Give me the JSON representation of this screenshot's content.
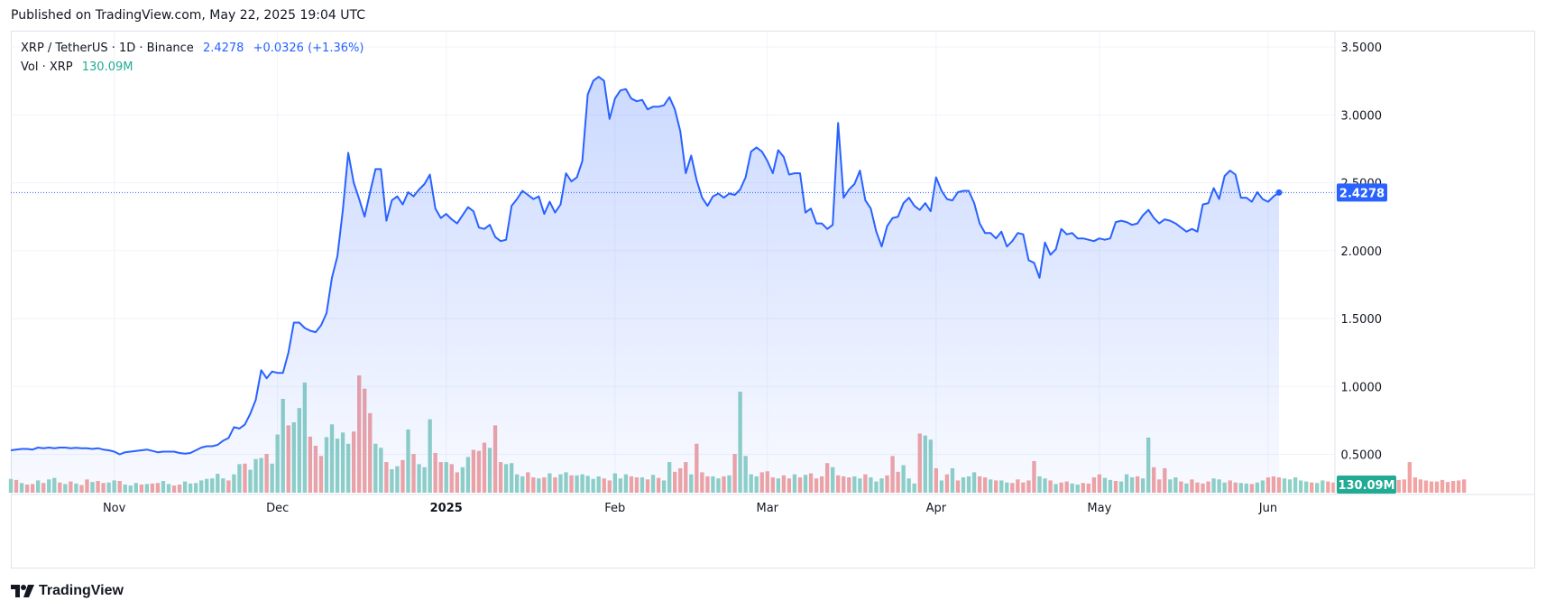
{
  "header": {
    "published": "Published on TradingView.com, May 22, 2025 19:04 UTC"
  },
  "legend": {
    "symbol": "XRP / TetherUS · 1D · Binance",
    "last": "2.4278",
    "change": "+0.0326 (+1.36%)",
    "vol_label": "Vol · XRP",
    "vol_value": "130.09M"
  },
  "price_tag": "2.4278",
  "volume_tag": "130.09M",
  "footer": {
    "brand": "TradingView"
  },
  "colors": {
    "line": "#2962ff",
    "up_volume": "#8fd1c6",
    "down_volume": "#f1a4a4",
    "price_tag": "#2962ff",
    "volume_tag": "#22ab94"
  },
  "chart_data": {
    "type": "area",
    "title": "XRP / TetherUS · 1D · Binance",
    "x_labels": [
      "Nov",
      "Dec",
      "2025",
      "Feb",
      "Mar",
      "Apr",
      "May",
      "Jun"
    ],
    "y_ticks": [
      "3.5000",
      "3.0000",
      "2.5000",
      "2.0000",
      "1.5000",
      "1.0000",
      "0.5000"
    ],
    "ylim": [
      0.27,
      3.5
    ],
    "grid": true,
    "last_value": 2.4278,
    "series": [
      {
        "name": "XRP / TetherUS",
        "date_range": [
          "2024-10-13",
          "2025-05-22"
        ],
        "interval": "1D",
        "values": [
          0.53,
          0.535,
          0.54,
          0.54,
          0.535,
          0.55,
          0.545,
          0.55,
          0.545,
          0.55,
          0.55,
          0.545,
          0.548,
          0.545,
          0.545,
          0.54,
          0.545,
          0.535,
          0.53,
          0.52,
          0.5,
          0.515,
          0.52,
          0.525,
          0.53,
          0.535,
          0.525,
          0.515,
          0.52,
          0.52,
          0.52,
          0.51,
          0.505,
          0.51,
          0.53,
          0.55,
          0.56,
          0.56,
          0.57,
          0.6,
          0.62,
          0.7,
          0.69,
          0.72,
          0.8,
          0.9,
          1.12,
          1.06,
          1.11,
          1.1,
          1.1,
          1.25,
          1.47,
          1.47,
          1.43,
          1.41,
          1.4,
          1.45,
          1.54,
          1.8,
          1.96,
          2.3,
          2.72,
          2.5,
          2.38,
          2.25,
          2.43,
          2.6,
          2.6,
          2.22,
          2.37,
          2.4,
          2.34,
          2.43,
          2.4,
          2.45,
          2.49,
          2.56,
          2.31,
          2.24,
          2.27,
          2.23,
          2.2,
          2.26,
          2.32,
          2.29,
          2.17,
          2.16,
          2.19,
          2.1,
          2.07,
          2.08,
          2.33,
          2.38,
          2.44,
          2.41,
          2.38,
          2.4,
          2.27,
          2.36,
          2.28,
          2.34,
          2.57,
          2.51,
          2.54,
          2.66,
          3.15,
          3.25,
          3.28,
          3.25,
          2.97,
          3.12,
          3.18,
          3.19,
          3.12,
          3.1,
          3.11,
          3.04,
          3.06,
          3.06,
          3.07,
          3.13,
          3.04,
          2.88,
          2.57,
          2.7,
          2.52,
          2.39,
          2.33,
          2.4,
          2.42,
          2.39,
          2.42,
          2.41,
          2.45,
          2.54,
          2.73,
          2.76,
          2.73,
          2.66,
          2.57,
          2.74,
          2.69,
          2.56,
          2.57,
          2.57,
          2.28,
          2.31,
          2.2,
          2.2,
          2.16,
          2.19,
          2.94,
          2.39,
          2.45,
          2.49,
          2.59,
          2.37,
          2.31,
          2.14,
          2.03,
          2.18,
          2.24,
          2.25,
          2.35,
          2.39,
          2.33,
          2.3,
          2.35,
          2.29,
          2.54,
          2.44,
          2.38,
          2.37,
          2.43,
          2.44,
          2.44,
          2.35,
          2.2,
          2.13,
          2.13,
          2.09,
          2.14,
          2.03,
          2.07,
          2.13,
          2.12,
          1.93,
          1.91,
          1.8,
          2.06,
          1.97,
          2.01,
          2.16,
          2.12,
          2.13,
          2.09,
          2.09,
          2.08,
          2.07,
          2.09,
          2.08,
          2.09,
          2.21,
          2.22,
          2.21,
          2.19,
          2.2,
          2.26,
          2.3,
          2.24,
          2.2,
          2.23,
          2.22,
          2.2,
          2.17,
          2.14,
          2.16,
          2.14,
          2.34,
          2.35,
          2.46,
          2.38,
          2.55,
          2.59,
          2.56,
          2.39,
          2.39,
          2.36,
          2.43,
          2.38,
          2.36,
          2.4,
          2.4278
        ]
      },
      {
        "name": "Vol · XRP",
        "unit": "M XRP",
        "values": [
          135,
          125,
          95,
          80,
          85,
          120,
          95,
          130,
          145,
          100,
          85,
          110,
          90,
          75,
          130,
          105,
          115,
          95,
          100,
          120,
          115,
          80,
          70,
          95,
          80,
          85,
          90,
          95,
          115,
          85,
          70,
          80,
          110,
          90,
          95,
          120,
          135,
          140,
          185,
          140,
          120,
          180,
          280,
          285,
          225,
          330,
          340,
          380,
          285,
          570,
          920,
          660,
          690,
          830,
          1080,
          550,
          460,
          360,
          545,
          670,
          530,
          590,
          480,
          600,
          1150,
          1020,
          780,
          480,
          440,
          300,
          230,
          260,
          320,
          620,
          380,
          280,
          250,
          720,
          390,
          300,
          300,
          280,
          200,
          250,
          350,
          420,
          410,
          490,
          440,
          660,
          300,
          280,
          290,
          180,
          160,
          200,
          150,
          140,
          150,
          190,
          150,
          180,
          200,
          170,
          170,
          180,
          165,
          135,
          160,
          140,
          120,
          190,
          140,
          180,
          160,
          150,
          150,
          130,
          175,
          145,
          120,
          300,
          205,
          240,
          300,
          180,
          480,
          200,
          160,
          160,
          140,
          160,
          170,
          380,
          990,
          360,
          180,
          160,
          200,
          210,
          150,
          140,
          170,
          140,
          180,
          150,
          175,
          190,
          140,
          160,
          290,
          250,
          170,
          160,
          150,
          160,
          140,
          180,
          150,
          110,
          140,
          170,
          360,
          205,
          270,
          140,
          90,
          580,
          560,
          520,
          240,
          120,
          180,
          240,
          120,
          150,
          160,
          200,
          160,
          150,
          130,
          120,
          120,
          100,
          95,
          130,
          100,
          120,
          310,
          160,
          140,
          120,
          85,
          100,
          110,
          90,
          80,
          95,
          90,
          150,
          180,
          145,
          125,
          115,
          110,
          180,
          150,
          160,
          140,
          540,
          250,
          130,
          240,
          130,
          150,
          110,
          90,
          130,
          100,
          90,
          110,
          140,
          130,
          100,
          120,
          100,
          95,
          90,
          85,
          100,
          120,
          150,
          160,
          150,
          140,
          130,
          150,
          120,
          110,
          100,
          95,
          120,
          110,
          100,
          80,
          90,
          110,
          90,
          95,
          110,
          140,
          160,
          110,
          130,
          150,
          125,
          130,
          300,
          150,
          130,
          120,
          110,
          110,
          125,
          105,
          115,
          120,
          130.09
        ],
        "up": [
          1,
          0,
          1,
          0,
          0,
          1,
          0,
          1,
          1,
          0,
          1,
          0,
          1,
          0,
          0,
          1,
          0,
          0,
          1,
          1,
          0,
          1,
          1,
          1,
          0,
          1,
          0,
          0,
          1,
          1,
          0,
          0,
          1,
          1,
          1,
          1,
          1,
          1,
          1,
          1,
          0,
          1,
          1,
          0,
          1,
          1,
          1,
          0,
          1,
          1,
          1,
          0,
          1,
          1,
          1,
          0,
          0,
          0,
          1,
          1,
          1,
          1,
          1,
          0,
          0,
          0,
          0,
          1,
          1,
          0,
          1,
          1,
          0,
          1,
          0,
          1,
          1,
          1,
          0,
          0,
          1,
          0,
          0,
          1,
          1,
          0,
          0,
          0,
          1,
          0,
          0,
          1,
          1,
          1,
          1,
          0,
          0,
          1,
          0,
          1,
          0,
          1,
          1,
          0,
          1,
          1,
          1,
          1,
          1,
          0,
          0,
          1,
          1,
          1,
          0,
          0,
          1,
          0,
          1,
          0,
          1,
          1,
          0,
          0,
          0,
          1,
          0,
          0,
          0,
          1,
          1,
          0,
          1,
          0,
          1,
          1,
          1,
          1,
          0,
          0,
          0,
          1,
          0,
          0,
          1,
          0,
          1,
          0,
          0,
          0,
          0,
          1,
          0,
          0,
          0,
          1,
          1,
          0,
          1,
          1,
          1,
          0,
          0,
          0,
          1,
          1,
          1,
          0,
          1,
          1,
          0,
          1,
          0,
          1,
          0,
          1,
          1,
          1,
          0,
          0,
          1,
          0,
          1,
          1,
          0,
          0,
          0,
          0,
          0,
          1,
          1,
          0,
          1,
          0,
          0,
          1,
          1,
          0,
          0,
          0,
          0,
          1,
          1,
          0,
          1,
          1,
          1,
          0,
          1,
          1,
          0,
          0,
          0,
          1,
          1,
          0,
          1,
          0,
          0,
          0,
          0,
          1,
          1,
          1,
          0,
          0,
          1,
          1,
          0,
          1,
          1,
          0,
          0,
          0,
          1,
          1,
          1,
          1,
          1,
          0,
          1,
          1,
          0,
          0,
          1,
          1,
          0,
          1,
          1,
          0,
          1
        ]
      }
    ]
  }
}
